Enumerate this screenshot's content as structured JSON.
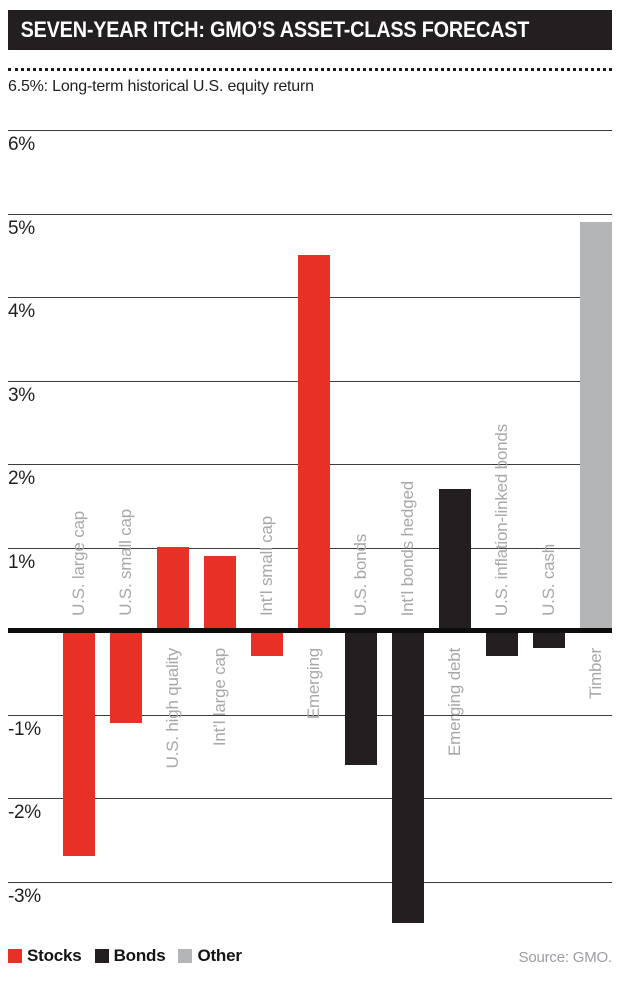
{
  "title": "SEVEN-YEAR ITCH: GMO’S ASSET-CLASS FORECAST",
  "annotation": {
    "text": "6.5%: Long-term historical U.S. equity return"
  },
  "chart_data": {
    "type": "bar",
    "title": "SEVEN-YEAR ITCH: GMO’S ASSET-CLASS FORECAST",
    "unit": "%",
    "ylim": [
      -3.7,
      6.6
    ],
    "grid": true,
    "legend_position": "bottom-left",
    "reference_line": {
      "value": 6.5,
      "style": "dotted",
      "label": "6.5%: Long-term historical U.S. equity return"
    },
    "yticks": [
      {
        "value": 6,
        "label": "6%"
      },
      {
        "value": 5,
        "label": "5%"
      },
      {
        "value": 4,
        "label": "4%"
      },
      {
        "value": 3,
        "label": "3%"
      },
      {
        "value": 2,
        "label": "2%"
      },
      {
        "value": 1,
        "label": "1%"
      },
      {
        "value": -1,
        "label": "-1%"
      },
      {
        "value": -2,
        "label": "-2%"
      },
      {
        "value": -3,
        "label": "-3%"
      }
    ],
    "bars": [
      {
        "label": "U.S. large cap",
        "value": -2.7,
        "group": "Stocks"
      },
      {
        "label": "U.S. small cap",
        "value": -1.1,
        "group": "Stocks"
      },
      {
        "label": "U.S. high quality",
        "value": 1.0,
        "group": "Stocks"
      },
      {
        "label": "Int’l large cap",
        "value": 0.9,
        "group": "Stocks"
      },
      {
        "label": "Int’l small cap",
        "value": -0.3,
        "group": "Stocks"
      },
      {
        "label": "Emerging",
        "value": 4.5,
        "group": "Stocks"
      },
      {
        "label": "U.S. bonds",
        "value": -1.6,
        "group": "Bonds"
      },
      {
        "label": "Int’l bonds hedged",
        "value": -3.5,
        "group": "Bonds"
      },
      {
        "label": "Emerging debt",
        "value": 1.7,
        "group": "Bonds"
      },
      {
        "label": "U.S. inflation-linked bonds",
        "value": -0.3,
        "group": "Bonds"
      },
      {
        "label": "U.S. cash",
        "value": -0.2,
        "group": "Bonds"
      },
      {
        "label": "Timber",
        "value": 4.9,
        "group": "Other"
      }
    ]
  },
  "legend": {
    "items": [
      {
        "label": "Stocks",
        "color": "#e73127"
      },
      {
        "label": "Bonds",
        "color": "#231f20"
      },
      {
        "label": "Other",
        "color": "#b3b5b7"
      }
    ]
  },
  "source": "Source: GMO.",
  "colors": {
    "stocks": "#e73127",
    "bonds": "#231f20",
    "other": "#b3b5b7",
    "grid": "#3d3d3d",
    "axis_label": "#a6a8ab",
    "tick_label": "#231f20",
    "title_bg": "#231f20",
    "title_fg": "#ffffff"
  }
}
